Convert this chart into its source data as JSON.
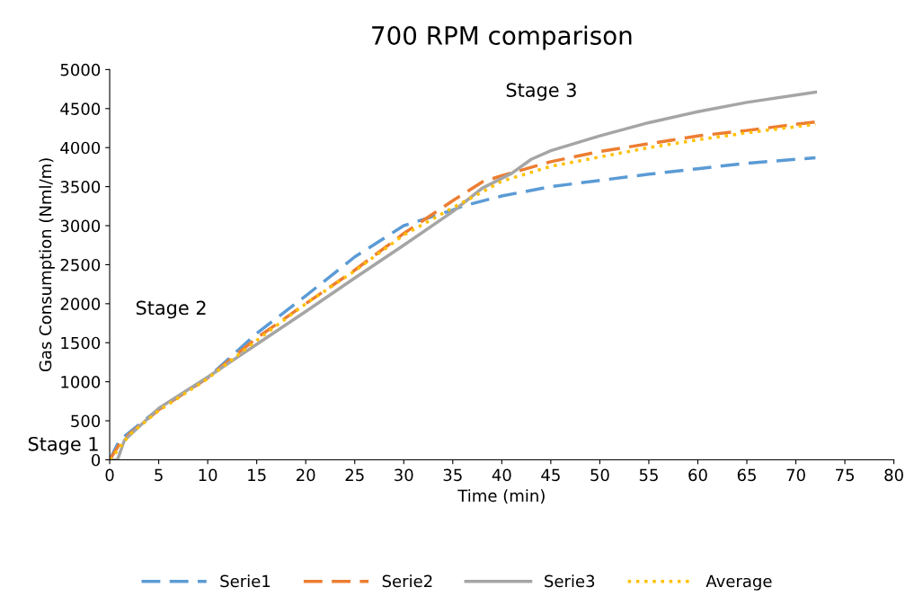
{
  "chart_data": {
    "type": "line",
    "title": "700 RPM comparison",
    "xlabel": "Time (min)",
    "ylabel": "Gas Consumption (Nml/m)",
    "xlim": [
      0,
      80
    ],
    "xticks": [
      0,
      5,
      10,
      15,
      20,
      25,
      30,
      35,
      40,
      45,
      50,
      55,
      60,
      65,
      70,
      75,
      80
    ],
    "ylim": [
      0,
      5000
    ],
    "yticks": [
      0,
      500,
      1000,
      1500,
      2000,
      2500,
      3000,
      3500,
      4000,
      4500,
      5000
    ],
    "grid": false,
    "legend": "bottom",
    "marker": "none",
    "annotations": [
      "Stage 1",
      "Stage 2",
      "Stage 3"
    ],
    "series": [
      {
        "name": "Serie1",
        "color": "#5b9bd5",
        "line_style": "dashed",
        "x": [
          0,
          1,
          2,
          5,
          10,
          15,
          20,
          25,
          30,
          35,
          36,
          40,
          45,
          50,
          55,
          60,
          65,
          72
        ],
        "values": [
          0,
          250,
          350,
          650,
          1050,
          1620,
          2100,
          2600,
          3000,
          3200,
          3250,
          3380,
          3500,
          3580,
          3660,
          3730,
          3800,
          3870
        ]
      },
      {
        "name": "Serie2",
        "color": "#ed7d31",
        "line_style": "dashed",
        "x": [
          0,
          1,
          2,
          5,
          10,
          15,
          20,
          25,
          30,
          35,
          38,
          40,
          45,
          50,
          55,
          60,
          65,
          72
        ],
        "values": [
          0,
          200,
          330,
          640,
          1050,
          1560,
          2000,
          2430,
          2900,
          3320,
          3560,
          3640,
          3820,
          3950,
          4050,
          4150,
          4220,
          4330
        ]
      },
      {
        "name": "Serie3",
        "color": "#a5a5a5",
        "line_style": "solid",
        "x": [
          0,
          0.8,
          1.5,
          5,
          10,
          15,
          20,
          25,
          30,
          35,
          38,
          41,
          43,
          45,
          50,
          55,
          60,
          65,
          72
        ],
        "values": [
          0,
          0,
          250,
          660,
          1060,
          1480,
          1900,
          2330,
          2750,
          3180,
          3480,
          3670,
          3850,
          3960,
          4150,
          4320,
          4460,
          4580,
          4710
        ]
      },
      {
        "name": "Average",
        "color": "#ffc000",
        "line_style": "dotted",
        "x": [
          0,
          1,
          2,
          5,
          10,
          15,
          20,
          25,
          30,
          35,
          38,
          40,
          45,
          50,
          55,
          60,
          65,
          72
        ],
        "values": [
          0,
          150,
          320,
          630,
          1040,
          1530,
          2000,
          2420,
          2880,
          3230,
          3430,
          3570,
          3760,
          3880,
          4000,
          4100,
          4190,
          4300
        ]
      }
    ]
  }
}
